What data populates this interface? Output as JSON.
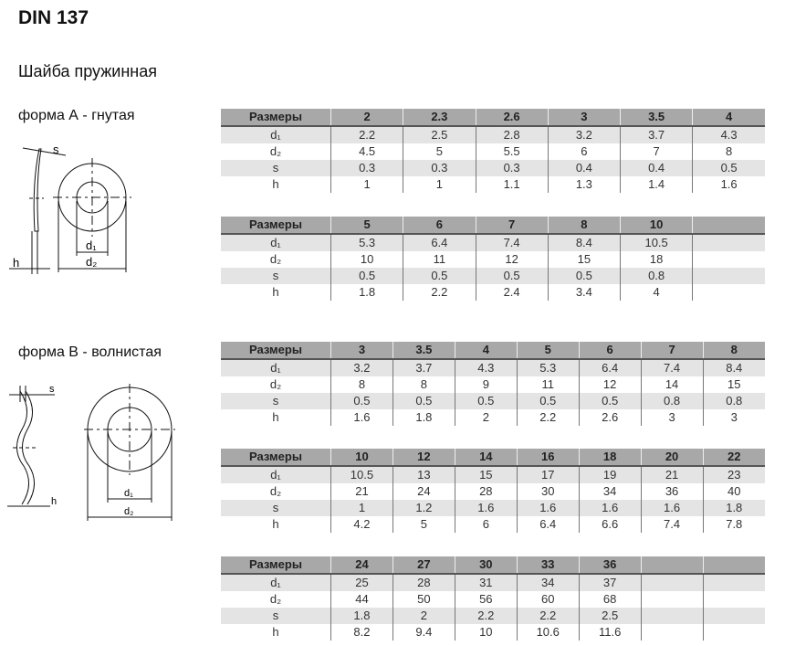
{
  "title": "DIN 137",
  "subtitle": "Шайба пружинная",
  "forms": [
    {
      "label": "форма А - гнутая",
      "drawing_labels": {
        "s": "s",
        "h": "h",
        "d1": "d₁",
        "d2": "d₂"
      },
      "tables": [
        {
          "header": "Размеры",
          "sizes": [
            "2",
            "2.3",
            "2.6",
            "3",
            "3.5",
            "4"
          ],
          "rows": [
            {
              "label": "d₁",
              "values": [
                "2.2",
                "2.5",
                "2.8",
                "3.2",
                "3.7",
                "4.3"
              ]
            },
            {
              "label": "d₂",
              "values": [
                "4.5",
                "5",
                "5.5",
                "6",
                "7",
                "8"
              ]
            },
            {
              "label": "s",
              "values": [
                "0.3",
                "0.3",
                "0.3",
                "0.4",
                "0.4",
                "0.5"
              ]
            },
            {
              "label": "h",
              "values": [
                "1",
                "1",
                "1.1",
                "1.3",
                "1.4",
                "1.6"
              ]
            }
          ]
        },
        {
          "header": "Размеры",
          "sizes": [
            "5",
            "6",
            "7",
            "8",
            "10",
            ""
          ],
          "rows": [
            {
              "label": "d₁",
              "values": [
                "5.3",
                "6.4",
                "7.4",
                "8.4",
                "10.5",
                ""
              ]
            },
            {
              "label": "d₂",
              "values": [
                "10",
                "11",
                "12",
                "15",
                "18",
                ""
              ]
            },
            {
              "label": "s",
              "values": [
                "0.5",
                "0.5",
                "0.5",
                "0.5",
                "0.8",
                ""
              ]
            },
            {
              "label": "h",
              "values": [
                "1.8",
                "2.2",
                "2.4",
                "3.4",
                "4",
                ""
              ]
            }
          ]
        }
      ]
    },
    {
      "label": "форма В - волнистая",
      "drawing_labels": {
        "s": "s",
        "h": "h",
        "d1": "d₁",
        "d2": "d₂"
      },
      "tables": [
        {
          "header": "Размеры",
          "sizes": [
            "3",
            "3.5",
            "4",
            "5",
            "6",
            "7",
            "8"
          ],
          "rows": [
            {
              "label": "d₁",
              "values": [
                "3.2",
                "3.7",
                "4.3",
                "5.3",
                "6.4",
                "7.4",
                "8.4"
              ]
            },
            {
              "label": "d₂",
              "values": [
                "8",
                "8",
                "9",
                "11",
                "12",
                "14",
                "15"
              ]
            },
            {
              "label": "s",
              "values": [
                "0.5",
                "0.5",
                "0.5",
                "0.5",
                "0.5",
                "0.8",
                "0.8"
              ]
            },
            {
              "label": "h",
              "values": [
                "1.6",
                "1.8",
                "2",
                "2.2",
                "2.6",
                "3",
                "3"
              ]
            }
          ]
        },
        {
          "header": "Размеры",
          "sizes": [
            "10",
            "12",
            "14",
            "16",
            "18",
            "20",
            "22"
          ],
          "rows": [
            {
              "label": "d₁",
              "values": [
                "10.5",
                "13",
                "15",
                "17",
                "19",
                "21",
                "23"
              ]
            },
            {
              "label": "d₂",
              "values": [
                "21",
                "24",
                "28",
                "30",
                "34",
                "36",
                "40"
              ]
            },
            {
              "label": "s",
              "values": [
                "1",
                "1.2",
                "1.6",
                "1.6",
                "1.6",
                "1.6",
                "1.8"
              ]
            },
            {
              "label": "h",
              "values": [
                "4.2",
                "5",
                "6",
                "6.4",
                "6.6",
                "7.4",
                "7.8"
              ]
            }
          ]
        },
        {
          "header": "Размеры",
          "sizes": [
            "24",
            "27",
            "30",
            "33",
            "36",
            "",
            ""
          ],
          "rows": [
            {
              "label": "d₁",
              "values": [
                "25",
                "28",
                "31",
                "34",
                "37",
                "",
                ""
              ]
            },
            {
              "label": "d₂",
              "values": [
                "44",
                "50",
                "56",
                "60",
                "68",
                "",
                ""
              ]
            },
            {
              "label": "s",
              "values": [
                "1.8",
                "2",
                "2.2",
                "2.2",
                "2.5",
                "",
                ""
              ]
            },
            {
              "label": "h",
              "values": [
                "8.2",
                "9.4",
                "10",
                "10.6",
                "11.6",
                "",
                ""
              ]
            }
          ]
        }
      ]
    }
  ]
}
